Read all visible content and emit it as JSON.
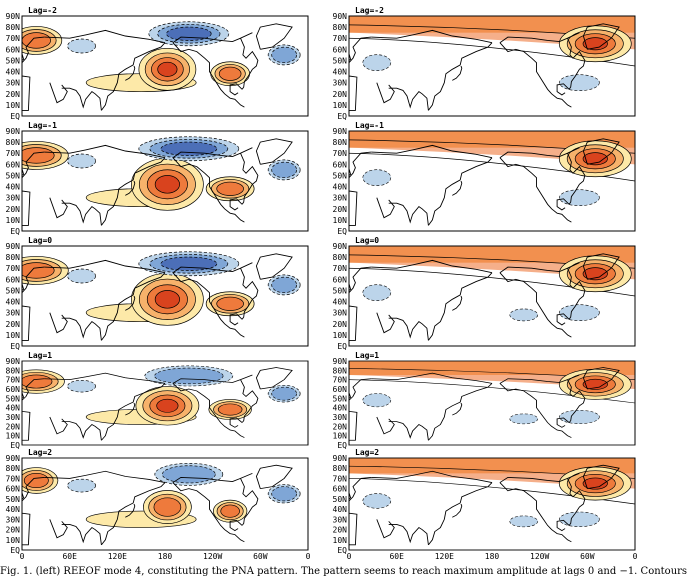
{
  "figure": {
    "lat_tick_labels": [
      "90N",
      "80N",
      "70N",
      "60N",
      "50N",
      "40N",
      "30N",
      "20N",
      "10N",
      "EQ"
    ],
    "lon_tick_labels": [
      "0",
      "60E",
      "120E",
      "180",
      "120W",
      "60W",
      "0"
    ],
    "panels": [
      {
        "id": "left-lag-m2",
        "column": "left",
        "lag_label": "Lag=-2",
        "lag": -2
      },
      {
        "id": "left-lag-m1",
        "column": "left",
        "lag_label": "Lag=-1",
        "lag": -1
      },
      {
        "id": "left-lag-0",
        "column": "left",
        "lag_label": "Lag=0",
        "lag": 0
      },
      {
        "id": "left-lag-1",
        "column": "left",
        "lag_label": "Lag=1",
        "lag": 1
      },
      {
        "id": "left-lag-2",
        "column": "left",
        "lag_label": "Lag=2",
        "lag": 2
      },
      {
        "id": "right-lag-m2",
        "column": "right",
        "lag_label": "Lag=-2",
        "lag": -2
      },
      {
        "id": "right-lag-m1",
        "column": "right",
        "lag_label": "Lag=-1",
        "lag": -1
      },
      {
        "id": "right-lag-0",
        "column": "right",
        "lag_label": "Lag=0",
        "lag": 0
      },
      {
        "id": "right-lag-1",
        "column": "right",
        "lag_label": "Lag=1",
        "lag": 1
      },
      {
        "id": "right-lag-2",
        "column": "right",
        "lag_label": "Lag=2",
        "lag": 2
      }
    ],
    "colors": {
      "warm_1": "#fde9a8",
      "warm_2": "#f7b26b",
      "warm_3": "#ee7a3c",
      "warm_4": "#d9431e",
      "cool_1": "#bcd4ea",
      "cool_2": "#7fa6d6",
      "cool_3": "#4c6fb8",
      "coast": "#000000",
      "frame": "#000000"
    }
  },
  "caption": {
    "text": "Fig. 1. (left) REEOF mode 4, constituting the PNA pattern. The pattern seems to reach maximum amplitude at lags 0 and −1. Contours"
  }
}
